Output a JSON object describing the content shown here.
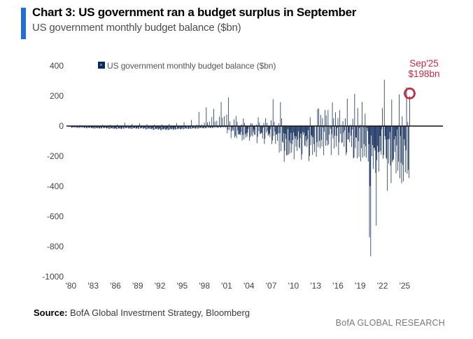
{
  "header": {
    "title": "Chart 3: US government ran a budget surplus in September",
    "subtitle": "US government monthly budget balance ($bn)"
  },
  "legend": {
    "label": "US government monthly budget balance ($bn)"
  },
  "annotation": {
    "line1": "Sep'25",
    "line2": "$198bn"
  },
  "footer": {
    "source_label": "Source:",
    "source_text": " BofA Global Investment Strategy, Bloomberg",
    "brand": "BofA GLOBAL RESEARCH"
  },
  "colors": {
    "bar": "#0f2a59",
    "accent": "#1f6fd4",
    "annotation_red": "#bb2b45",
    "axis_text": "#3f4450",
    "zero_line": "#111111"
  },
  "chart_data": {
    "type": "bar",
    "title": "US government monthly budget balance ($bn)",
    "xlabel": "",
    "ylabel": "",
    "ylim": [
      -1000,
      400
    ],
    "yticks": [
      400,
      200,
      0,
      -200,
      -400,
      -600,
      -800,
      -1000
    ],
    "xtick_years": [
      1980,
      1983,
      1986,
      1989,
      1992,
      1995,
      1998,
      2001,
      2004,
      2007,
      2010,
      2013,
      2016,
      2019,
      2022,
      2025
    ],
    "xtick_labels": [
      "'80",
      "'83",
      "'86",
      "'89",
      "'92",
      "'95",
      "'98",
      "'01",
      "'04",
      "'07",
      "'10",
      "'13",
      "'16",
      "'19",
      "'22",
      "'25"
    ],
    "grid": false,
    "legend_position": "top-left",
    "highlight": {
      "label": "Sep'25",
      "value": 198
    },
    "start_year": 1980,
    "end_month": "Sep 2025",
    "monthly_by_year": {
      "1980": [
        -5,
        -12,
        -10,
        4,
        -9,
        -6,
        -8,
        -9,
        -3,
        -10,
        -12,
        -8
      ],
      "1981": [
        -4,
        -13,
        -11,
        6,
        -10,
        -6,
        -9,
        -10,
        -2,
        -11,
        -13,
        -9
      ],
      "1982": [
        -7,
        -15,
        -14,
        3,
        -13,
        -9,
        -11,
        -12,
        -5,
        -13,
        -15,
        -11
      ],
      "1983": [
        -9,
        -17,
        -16,
        4,
        -15,
        -11,
        -13,
        -14,
        -6,
        -15,
        -17,
        -12
      ],
      "1984": [
        -8,
        -16,
        -15,
        8,
        -14,
        -10,
        -12,
        -13,
        -5,
        -14,
        -16,
        -12
      ],
      "1985": [
        -10,
        -19,
        -18,
        9,
        -17,
        -12,
        -14,
        -16,
        -7,
        -17,
        -19,
        -14
      ],
      "1986": [
        -11,
        -21,
        -19,
        10,
        -18,
        -13,
        -15,
        -17,
        -8,
        -18,
        -20,
        -15
      ],
      "1987": [
        -7,
        -17,
        -16,
        22,
        -15,
        -10,
        -12,
        -14,
        -4,
        -15,
        -17,
        -12
      ],
      "1988": [
        -9,
        -19,
        -18,
        15,
        -17,
        -11,
        -13,
        -15,
        -6,
        -16,
        -18,
        -13
      ],
      "1989": [
        -8,
        -18,
        -17,
        18,
        -16,
        -11,
        -13,
        -15,
        -5,
        -16,
        -18,
        -13
      ],
      "1990": [
        -11,
        -22,
        -21,
        12,
        -20,
        -14,
        -16,
        -18,
        -8,
        -19,
        -21,
        -16
      ],
      "1991": [
        -13,
        -25,
        -24,
        10,
        -23,
        -16,
        -18,
        -20,
        -10,
        -21,
        -24,
        -18
      ],
      "1992": [
        -15,
        -27,
        -26,
        11,
        -25,
        -18,
        -20,
        -22,
        -11,
        -23,
        -26,
        -20
      ],
      "1993": [
        -14,
        -26,
        -25,
        14,
        -24,
        -17,
        -19,
        -21,
        -10,
        -22,
        -25,
        -19
      ],
      "1994": [
        -11,
        -23,
        -22,
        20,
        -21,
        -15,
        -17,
        -19,
        -7,
        -20,
        -22,
        -17
      ],
      "1995": [
        -9,
        -21,
        -20,
        25,
        -19,
        -13,
        -15,
        -17,
        -5,
        -18,
        -20,
        -15
      ],
      "1996": [
        -6,
        -19,
        -18,
        40,
        -17,
        -11,
        -13,
        -15,
        2,
        -16,
        -18,
        -13
      ],
      "1997": [
        8,
        -17,
        -16,
        94,
        -15,
        -9,
        -11,
        -13,
        10,
        -14,
        -16,
        -11
      ],
      "1998": [
        22,
        -15,
        -14,
        125,
        -13,
        24,
        -9,
        -11,
        30,
        -12,
        -14,
        -9
      ],
      "1999": [
        60,
        -13,
        -12,
        114,
        -11,
        30,
        -7,
        -9,
        35,
        -10,
        -12,
        -7
      ],
      "2000": [
        62,
        -11,
        -10,
        160,
        -9,
        56,
        -6,
        -8,
        65,
        -7,
        -10,
        -5
      ],
      "2001": [
        76,
        -48,
        -23,
        190,
        -28,
        31,
        -2,
        -80,
        -35,
        -8,
        -25,
        -32
      ],
      "2002": [
        44,
        -76,
        -64,
        67,
        -80,
        29,
        -29,
        -55,
        -55,
        -54,
        -59,
        -40
      ],
      "2003": [
        11,
        -96,
        -59,
        51,
        -89,
        21,
        -54,
        -77,
        -48,
        -69,
        -43,
        -18
      ],
      "2004": [
        -1,
        -97,
        -73,
        18,
        -62,
        19,
        -69,
        -41,
        -24,
        -57,
        -58,
        -2
      ],
      "2005": [
        9,
        -114,
        -71,
        58,
        -35,
        23,
        -53,
        -50,
        -45,
        -47,
        -83,
        -11
      ],
      "2006": [
        21,
        -119,
        -85,
        52,
        -43,
        21,
        -33,
        -65,
        -56,
        -49,
        -73,
        -21
      ],
      "2007": [
        38,
        -120,
        -96,
        178,
        -67,
        27,
        -36,
        -117,
        -56,
        -56,
        -98,
        -48
      ],
      "2008": [
        18,
        -176,
        -48,
        159,
        -166,
        51,
        -103,
        -112,
        -46,
        -237,
        -164,
        -52
      ],
      "2009": [
        -84,
        -194,
        -192,
        -21,
        -190,
        -94,
        -181,
        -112,
        -46,
        -176,
        -120,
        -92
      ],
      "2010": [
        -43,
        -221,
        -65,
        -83,
        -136,
        -68,
        -165,
        -90,
        -35,
        -140,
        -150,
        -80
      ],
      "2011": [
        -50,
        -223,
        -188,
        -40,
        -58,
        -43,
        -129,
        -134,
        -65,
        -98,
        -137,
        -86
      ],
      "2012": [
        -27,
        -232,
        -198,
        59,
        -125,
        -60,
        -70,
        -191,
        -75,
        -120,
        -172,
        -1
      ],
      "2013": [
        3,
        -204,
        -107,
        113,
        -139,
        117,
        -98,
        -148,
        75,
        -92,
        -135,
        53
      ],
      "2014": [
        -10,
        -194,
        -37,
        107,
        -130,
        71,
        -95,
        -129,
        106,
        -122,
        -57,
        2
      ],
      "2015": [
        -18,
        -192,
        -53,
        157,
        -82,
        52,
        -149,
        -64,
        91,
        -136,
        -65,
        -14
      ],
      "2016": [
        55,
        -193,
        -108,
        106,
        -52,
        6,
        -113,
        -107,
        33,
        -44,
        -137,
        -28
      ],
      "2017": [
        51,
        -192,
        -176,
        182,
        -88,
        -90,
        -43,
        -108,
        8,
        -63,
        -139,
        -23
      ],
      "2018": [
        49,
        -215,
        -209,
        214,
        -147,
        -75,
        -77,
        -214,
        119,
        -100,
        -205,
        -14
      ],
      "2019": [
        9,
        -234,
        -147,
        160,
        -208,
        -8,
        -120,
        -200,
        83,
        -134,
        -209,
        -13
      ],
      "2020": [
        -33,
        -235,
        -119,
        -738,
        -399,
        -864,
        -63,
        -200,
        -125,
        -284,
        -145,
        -144
      ],
      "2021": [
        -163,
        -311,
        -660,
        -226,
        -132,
        -174,
        -302,
        -171,
        -65,
        -165,
        -191,
        -21
      ],
      "2022": [
        119,
        -217,
        -193,
        308,
        -66,
        -89,
        -211,
        -220,
        -430,
        -88,
        -249,
        -85
      ],
      "2023": [
        -39,
        -262,
        -378,
        176,
        -240,
        -228,
        -221,
        -89,
        -171,
        -67,
        -314,
        -129
      ],
      "2024": [
        -22,
        -296,
        -236,
        210,
        -347,
        -66,
        -244,
        -380,
        64,
        -257,
        -367,
        -87
      ],
      "2025": [
        -129,
        -307,
        -161,
        258,
        -316,
        27,
        -291,
        -345,
        198
      ]
    }
  }
}
